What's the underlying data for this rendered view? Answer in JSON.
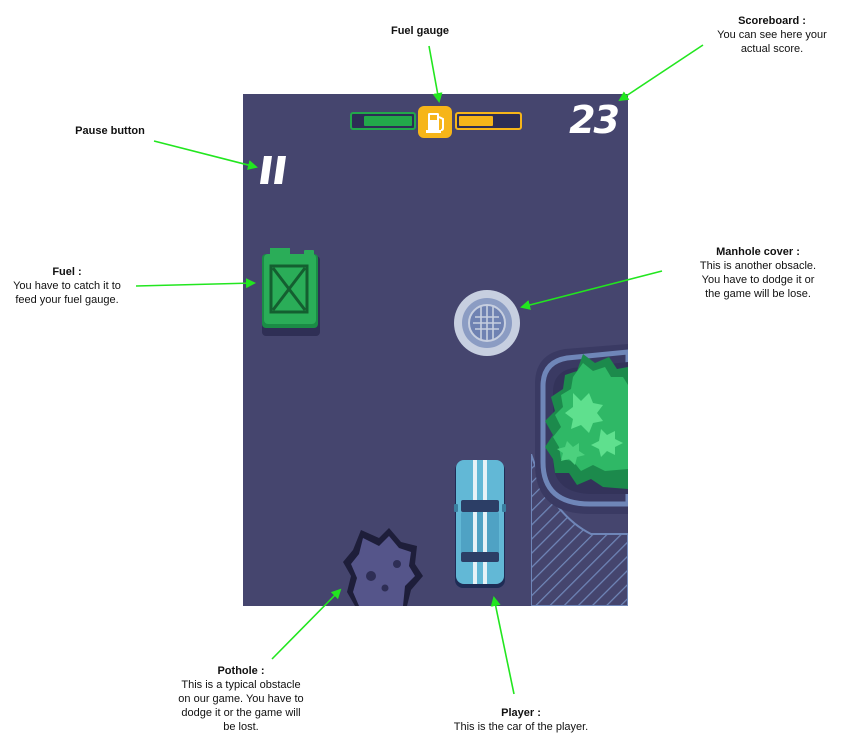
{
  "annotations": {
    "fuel_gauge": {
      "title": "Fuel gauge"
    },
    "scoreboard": {
      "title": "Scoreboard :",
      "desc": "You can see here your\nactual score."
    },
    "pause": {
      "title": "Pause button"
    },
    "fuel": {
      "title": "Fuel :",
      "desc": "You have to catch it to\nfeed your fuel gauge."
    },
    "manhole": {
      "title": "Manhole cover :",
      "desc": "This is another obsacle.\nYou have to dodge it or\nthe game will be lose."
    },
    "pothole": {
      "title": "Pothole :",
      "desc": "This is a typical obstacle\non our game. You have to\ndodge it or the game will\nbe lost."
    },
    "player": {
      "title": "Player :",
      "desc": "This is the car of the player."
    }
  },
  "game": {
    "score": "23",
    "fuel_level": 0.5
  },
  "colors": {
    "road": "#45456e",
    "arrow": "#22e61f",
    "fuel_green": "#22a84a",
    "fuel_yellow": "#f6b519"
  },
  "icons": [
    "pause-icon",
    "fuel-pump-icon",
    "jerrycan-icon",
    "manhole-icon",
    "pothole-icon",
    "player-car-icon",
    "bush-icon"
  ]
}
